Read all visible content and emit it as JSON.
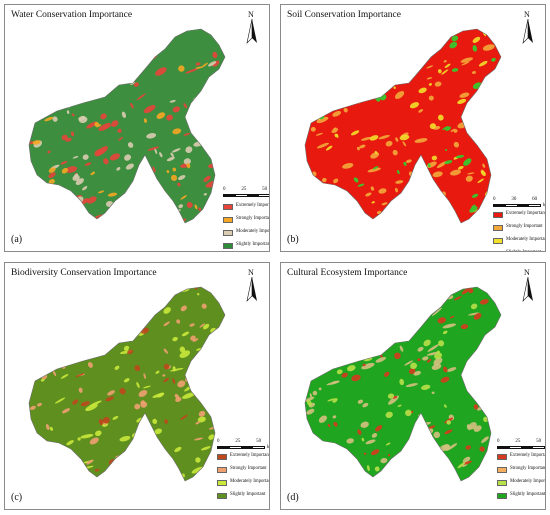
{
  "panels": [
    {
      "title": "Water Conservation Importance",
      "letter": "(a)",
      "scale": {
        "ticks": [
          "0",
          "25",
          "50"
        ],
        "unit": "km"
      },
      "legend": [
        {
          "label": "Extremely Important",
          "color": "#e8443a"
        },
        {
          "label": "Strongly Important",
          "color": "#f5a623"
        },
        {
          "label": "Moderately Important",
          "color": "#d9ccb0"
        },
        {
          "label": "Slightly Important",
          "color": "#2e8b3a"
        }
      ],
      "base_color": "#3d8f3f",
      "accent_colors": [
        "#e8443a",
        "#d9ccb0",
        "#f5a623"
      ]
    },
    {
      "title": "Soil Conservation Importance",
      "letter": "(b)",
      "scale": {
        "ticks": [
          "0",
          "30",
          "60"
        ],
        "unit": "km"
      },
      "legend": [
        {
          "label": "Extremely Important",
          "color": "#e8190f"
        },
        {
          "label": "Strongly Important",
          "color": "#f3a83a"
        },
        {
          "label": "Moderately Important",
          "color": "#f2e02a"
        },
        {
          "label": "Slightly Important",
          "color": "#2fd12f"
        }
      ],
      "base_color": "#e8190f",
      "accent_colors": [
        "#f3a83a",
        "#f2e02a",
        "#2fd12f"
      ]
    },
    {
      "title": "Biodiversity Conservation Importance",
      "letter": "(c)",
      "scale": {
        "ticks": [
          "0",
          "25",
          "50"
        ],
        "unit": "km"
      },
      "legend": [
        {
          "label": "Extremely Important",
          "color": "#c0461c"
        },
        {
          "label": "Strongly Important",
          "color": "#f0a070"
        },
        {
          "label": "Moderately Important",
          "color": "#c8e83a"
        },
        {
          "label": "Slightly Important",
          "color": "#5f8f1f"
        }
      ],
      "base_color": "#5f8f1f",
      "accent_colors": [
        "#c8e83a",
        "#f0a070",
        "#c0461c"
      ]
    },
    {
      "title": "Cultural Ecosystem Importance",
      "letter": "(d)",
      "scale": {
        "ticks": [
          "0",
          "25",
          "50"
        ],
        "unit": "km"
      },
      "legend": [
        {
          "label": "Extremely Important",
          "color": "#d63a1e"
        },
        {
          "label": "Strongly Important",
          "color": "#f4b060"
        },
        {
          "label": "Moderately Important",
          "color": "#b8e04a"
        },
        {
          "label": "Slightly Important",
          "color": "#1fa51f"
        }
      ],
      "base_color": "#1fa51f",
      "accent_colors": [
        "#d4c080",
        "#d63a1e",
        "#b8e04a"
      ]
    }
  ],
  "north_label": "N"
}
